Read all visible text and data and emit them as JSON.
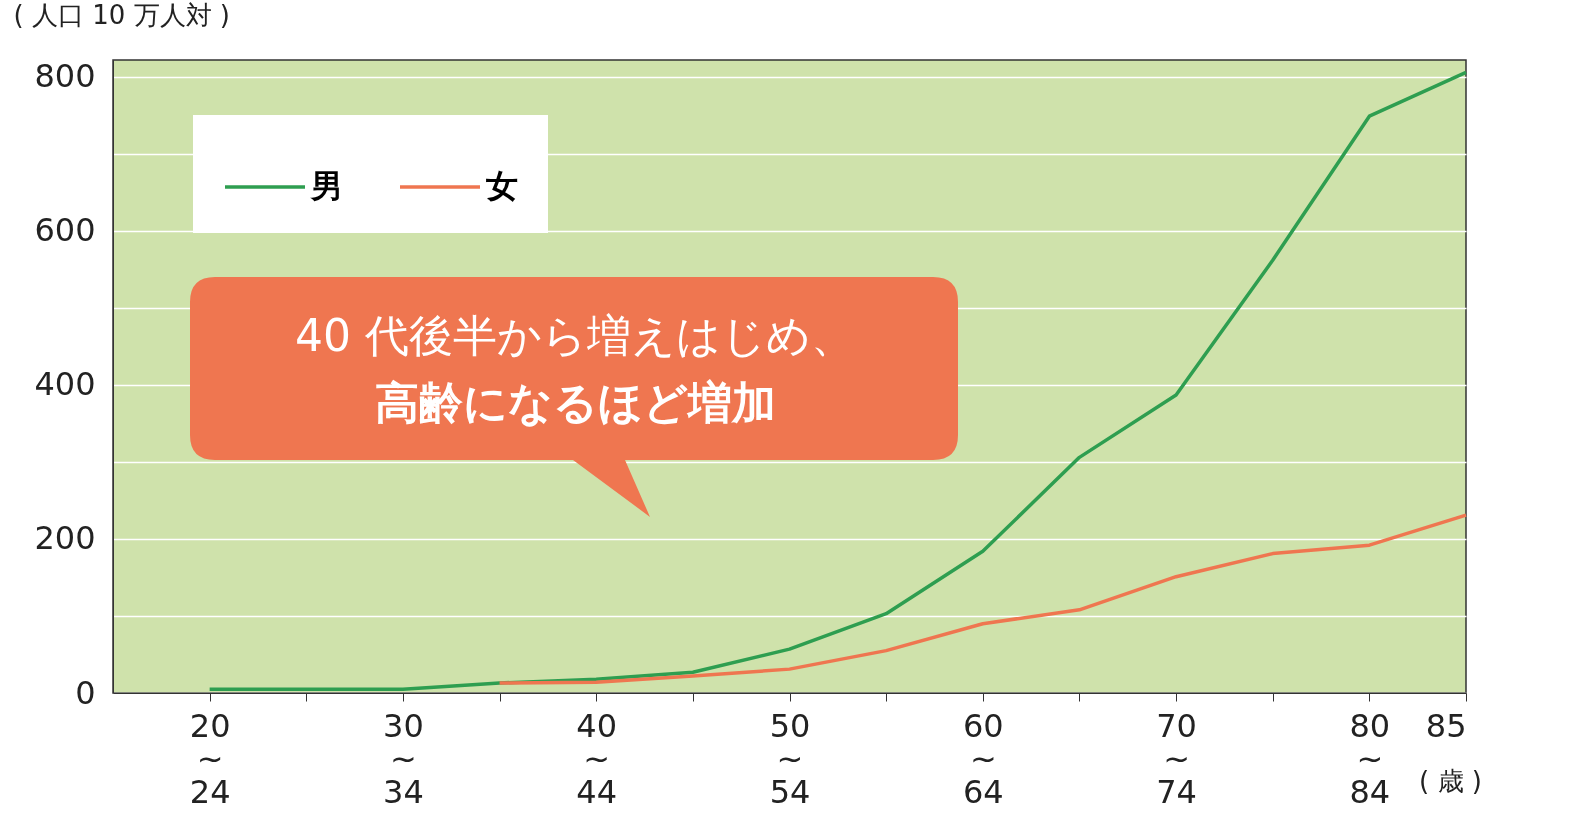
{
  "chart_data": {
    "type": "line",
    "ylabel": "( 人口 10 万人対 )",
    "xlabel": "( 歳 )",
    "categories": [
      "20\n~\n24",
      null,
      "30\n~\n34",
      null,
      "40\n~\n44",
      null,
      "50\n~\n54",
      null,
      "60\n~\n64",
      null,
      "70\n~\n74",
      null,
      "80\n~\n84",
      "85"
    ],
    "series": [
      {
        "name": "男",
        "color": "#2e9e50",
        "values": [
          5,
          5,
          5,
          13,
          18,
          27,
          57,
          103,
          184,
          306,
          387,
          562,
          749,
          806
        ]
      },
      {
        "name": "女",
        "color": "#ef7650",
        "values": [
          null,
          null,
          null,
          13,
          14,
          22,
          31,
          55,
          90,
          108,
          151,
          181,
          192,
          231
        ]
      }
    ],
    "ylim": [
      0,
      822
    ],
    "yticks": [
      0,
      {
        "value": 100,
        "label": null
      },
      200,
      {
        "value": 300,
        "label": null
      },
      400,
      {
        "value": 500,
        "label": null
      },
      600,
      {
        "value": 700,
        "label": null
      },
      800
    ],
    "grid": "y",
    "legend": "top left",
    "annotations": [
      "40 代後半から増えはじめ、",
      "高齢になるほど増加"
    ]
  }
}
